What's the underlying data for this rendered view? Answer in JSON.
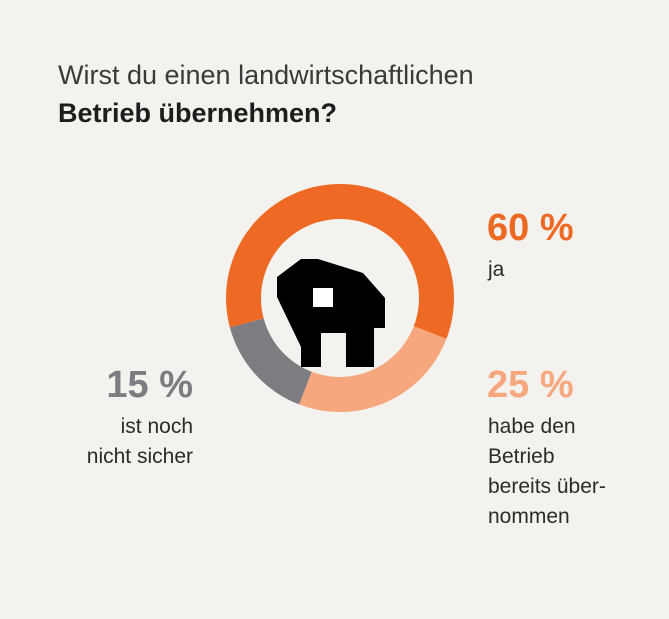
{
  "title": {
    "line1": "Wirst du einen landwirtschaftlichen",
    "line2": "Betrieb übernehmen?"
  },
  "colors": {
    "ja": "#ee6a24",
    "uebernommen": "#f6a77d",
    "unsicher": "#7d7d81",
    "background": "#f3f2ee",
    "barn": "#000000"
  },
  "icons": {
    "center": "barn-icon"
  },
  "chart_data": {
    "type": "pie",
    "donut": true,
    "slices": [
      {
        "key": "ja",
        "value": 60,
        "value_label": "60 %",
        "label": "ja",
        "color": "#ee6a24"
      },
      {
        "key": "uebernommen",
        "value": 25,
        "value_label": "25 %",
        "label": "habe den\nBetrieb\nbereits über-\nnommen",
        "color": "#f6a77d"
      },
      {
        "key": "unsicher",
        "value": 15,
        "value_label": "15 %",
        "label": "ist noch\nnicht sicher",
        "color": "#7d7d81"
      }
    ]
  }
}
